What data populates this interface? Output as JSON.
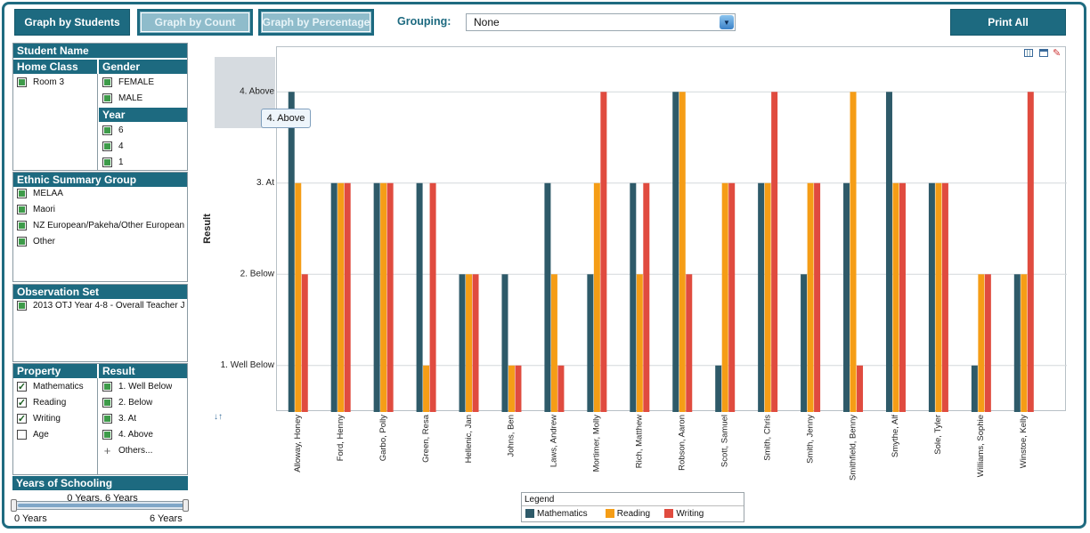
{
  "toolbar": {
    "graph_by_students": "Graph by Students",
    "graph_by_count": "Graph by Count",
    "graph_by_percentage": "Graph by Percentage",
    "grouping_label": "Grouping:",
    "grouping_value": "None",
    "print_all": "Print All"
  },
  "filters": {
    "student_name": "Student Name",
    "home_class": {
      "header": "Home Class",
      "items": [
        "Room 3"
      ]
    },
    "gender": {
      "header": "Gender",
      "items": [
        "FEMALE",
        "MALE"
      ]
    },
    "year": {
      "header": "Year",
      "items": [
        "6",
        "4",
        "1"
      ]
    },
    "ethnic": {
      "header": "Ethnic Summary Group",
      "items": [
        "MELAA",
        "Maori",
        "NZ European/Pakeha/Other European",
        "Other"
      ]
    },
    "observation": {
      "header": "Observation Set",
      "items": [
        "2013 OTJ Year 4-8 - Overall Teacher J"
      ]
    },
    "property": {
      "header": "Property",
      "items": [
        "Mathematics",
        "Reading",
        "Writing",
        "Age"
      ],
      "checked": [
        true,
        true,
        true,
        false
      ]
    },
    "result": {
      "header": "Result",
      "items": [
        "1. Well Below",
        "2. Below",
        "3. At",
        "4. Above"
      ],
      "others": "Others..."
    },
    "years_of_schooling": {
      "header": "Years of Schooling",
      "range_label": "0 Years, 6 Years",
      "min_label": "0 Years",
      "max_label": "6 Years"
    }
  },
  "tooltip": "4. Above",
  "sort_icon": "sort-icon",
  "chart_icons": [
    "table-icon",
    "window-icon",
    "edit-icon"
  ],
  "chart_data": {
    "type": "bar",
    "ylabel": "Result",
    "yticks": [
      "1. Well Below",
      "2. Below",
      "3. At",
      "4. Above"
    ],
    "categories": [
      "Alloway, Honey",
      "Ford, Henny",
      "Garbo, Polly",
      "Green, Resa",
      "Hellenic, Jan",
      "Johns, Ben",
      "Laws, Andrew",
      "Mortimer, Molly",
      "Rich, Matthew",
      "Robson, Aaron",
      "Scott, Samuel",
      "Smith, Chris",
      "Smith, Jenny",
      "Smithfield, Benny",
      "Smythe, Alf",
      "Sole, Tyler",
      "Williams, Sophie",
      "Winstoe, Kelly"
    ],
    "series": [
      {
        "name": "Mathematics",
        "color": "#2e5a69",
        "values": [
          4,
          3,
          3,
          3,
          2,
          2,
          3,
          2,
          3,
          4,
          1,
          3,
          2,
          3,
          4,
          3,
          1,
          2
        ]
      },
      {
        "name": "Reading",
        "color": "#f59d16",
        "values": [
          3,
          3,
          3,
          1,
          2,
          1,
          2,
          3,
          2,
          4,
          3,
          3,
          3,
          4,
          3,
          3,
          2,
          2
        ]
      },
      {
        "name": "Writing",
        "color": "#e04b3f",
        "values": [
          2,
          3,
          3,
          3,
          2,
          1,
          1,
          4,
          3,
          2,
          3,
          4,
          3,
          1,
          3,
          3,
          2,
          4
        ]
      }
    ],
    "legend_title": "Legend",
    "legend_position": "bottom"
  }
}
